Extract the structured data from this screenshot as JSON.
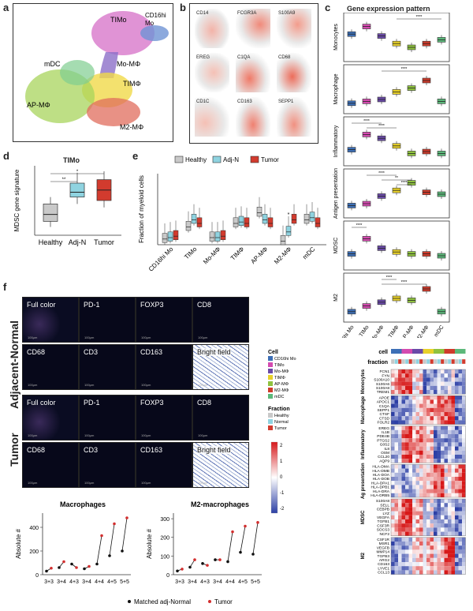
{
  "panels": {
    "a": "a",
    "b": "b",
    "c": "c",
    "d": "d",
    "e": "e",
    "f": "f"
  },
  "panel_a": {
    "labels": [
      "TIMo",
      "CD16hi",
      "Mo",
      "mDC",
      "Mo-MΦ",
      "TIMΦ",
      "AP-MΦ",
      "M2-MΦ"
    ]
  },
  "panel_b": {
    "genes": [
      "CD14",
      "FCGR3A",
      "S100A9",
      "EREG",
      "C1QA",
      "CD68",
      "CD1C",
      "CD163",
      "SEPP1"
    ]
  },
  "panel_c": {
    "title": "Gene expression pattern",
    "rows": [
      "Monocytes",
      "Macrophage",
      "Inflammatory",
      "Antigen presentation",
      "MDSC",
      "M2"
    ],
    "xticks": [
      "CD16hi Mo",
      "TIMo",
      "Mo-MΦ",
      "TIMΦ",
      "AP-MΦ",
      "M2-MΦ",
      "mDC"
    ],
    "sig_stars": [
      "****",
      "****",
      "****",
      "****",
      "****",
      "**",
      "****",
      "****",
      "****",
      "****",
      "***",
      "****",
      "****"
    ]
  },
  "panel_d": {
    "title": "TIMo",
    "ylabel": "MDSC gene signature",
    "categories": [
      "Healthy",
      "Adj-N",
      "Tumor"
    ],
    "sig": [
      "**",
      "*"
    ]
  },
  "panel_e": {
    "ylabel": "Fraction of myeloid cells",
    "legend": [
      "Healthy",
      "Adj-N",
      "Tumor"
    ],
    "categories": [
      "CD16hi Mo",
      "TIMo",
      "Mo-MΦ",
      "TIMΦ",
      "AP-MΦ",
      "M2-MΦ",
      "mDC"
    ],
    "sig": "*"
  },
  "panel_f": {
    "groups": [
      "Adjacent-Normal",
      "Tumor"
    ],
    "tiles": [
      "Full color",
      "PD-1",
      "FOXP3",
      "CD8",
      "CD68",
      "CD3",
      "CD163",
      "Bright field"
    ],
    "scalebar": "100μm"
  },
  "heatmap": {
    "cell_title": "Cell",
    "cell_legend": [
      "CD16hi Mo",
      "TIMo",
      "Mo-MΦ",
      "TIMΦ",
      "AP-MΦ",
      "M2-MΦ",
      "mDC"
    ],
    "fraction_title": "Fraction",
    "fraction_legend": [
      "Healthy",
      "Normal",
      "Tumor"
    ],
    "scale_ticks": [
      "2",
      "1",
      "0",
      "-1",
      "-2"
    ],
    "top_labels": [
      "cell",
      "fraction"
    ],
    "groups": [
      {
        "name": "Monocytes",
        "genes": [
          "FCN1",
          "FYN",
          "S100A10",
          "S100A6",
          "S100A8",
          "TREM1"
        ]
      },
      {
        "name": "Macrophage",
        "genes": [
          "APOE",
          "APOC1",
          "C1QA",
          "SEPP1",
          "CTSF",
          "CTSD",
          "FOLR2"
        ]
      },
      {
        "name": "Inflammatory",
        "genes": [
          "EREG",
          "IL1B",
          "PDE4B",
          "PTGS2",
          "G0S2",
          "IL8",
          "OSM",
          "CCL20",
          "AQP9"
        ]
      },
      {
        "name": "Ag presentation",
        "genes": [
          "HLA-DMA",
          "HLA-DMB",
          "HLA-DOA",
          "HLA-DOB",
          "HLA-DPA1",
          "HLA-DPB1",
          "HLA-DRA",
          "HLA-DRB5"
        ]
      },
      {
        "name": "MDSC",
        "genes": [
          "S100A8",
          "SELL",
          "CEBPB",
          "LYZ",
          "VEGFA",
          "TGFB1",
          "CSF3R",
          "SOCS3",
          "NCF2"
        ]
      },
      {
        "name": "M2",
        "genes": [
          "CSF1R",
          "MSR1",
          "VEGFB",
          "MMP14",
          "TGFB3",
          "ARG2",
          "CD163",
          "LYVE1",
          "CCL13"
        ]
      }
    ]
  },
  "colors": {
    "CD16hi Mo": "#3d6fb6",
    "TIMo": "#d44bb0",
    "Mo-MΦ": "#6a4aa8",
    "TIMΦ": "#e8d12a",
    "AP-MΦ": "#8fc23f",
    "M2-MΦ": "#cf3b2b",
    "mDC": "#5cb87a",
    "Healthy": "#c9c9c9",
    "Normal": "#8fd3e0",
    "Tumor": "#d23b2e"
  },
  "chart_data": [
    {
      "type": "line",
      "title": "Macrophages",
      "ylabel": "Absolute #",
      "xlabel": "",
      "categories": [
        "3+3",
        "3+4",
        "4+3",
        "3+4",
        "4+4",
        "4+5",
        "5+5"
      ],
      "yticks": [
        0,
        200,
        400
      ],
      "ylim": [
        0,
        520
      ],
      "series": [
        {
          "name": "Matched adj-Normal",
          "values": [
            30,
            60,
            90,
            50,
            90,
            160,
            200
          ]
        },
        {
          "name": "Tumor",
          "values": [
            55,
            110,
            60,
            70,
            330,
            430,
            480
          ]
        }
      ]
    },
    {
      "type": "line",
      "title": "M2-macrophages",
      "ylabel": "Absolute #",
      "xlabel": "",
      "categories": [
        "3+3",
        "3+4",
        "4+3",
        "3+4",
        "4+4",
        "4+5",
        "5+5"
      ],
      "yticks": [
        0,
        100,
        200,
        300
      ],
      "ylim": [
        0,
        330
      ],
      "series": [
        {
          "name": "Matched adj-Normal",
          "values": [
            20,
            40,
            60,
            80,
            70,
            120,
            110
          ]
        },
        {
          "name": "Tumor",
          "values": [
            30,
            80,
            50,
            80,
            230,
            260,
            280
          ]
        }
      ]
    }
  ],
  "legend_bottom": [
    "Matched adj-Normal",
    "Tumor"
  ]
}
